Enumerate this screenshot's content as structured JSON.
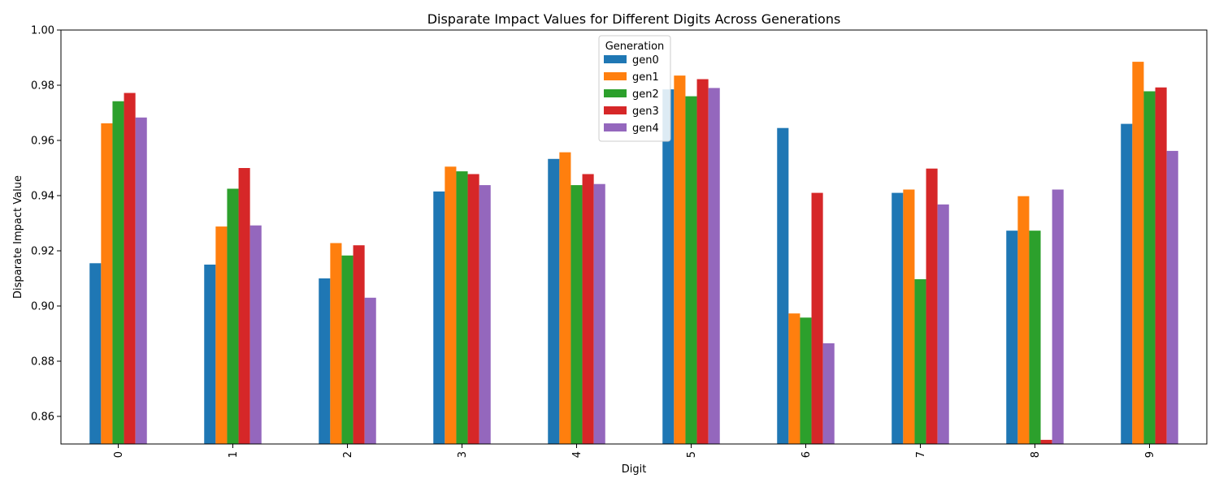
{
  "chart_data": {
    "type": "bar",
    "title": "Disparate Impact Values for Different Digits Across Generations",
    "xlabel": "Digit",
    "ylabel": "Disparate Impact Value",
    "ylim": [
      0.85,
      1.0
    ],
    "yticks": [
      "0.86",
      "0.88",
      "0.90",
      "0.92",
      "0.94",
      "0.96",
      "0.98",
      "1.00"
    ],
    "categories": [
      "0",
      "1",
      "2",
      "3",
      "4",
      "5",
      "6",
      "7",
      "8",
      "9"
    ],
    "legend": {
      "title": "Generation",
      "placement": "top-center"
    },
    "grid": false,
    "series": [
      {
        "name": "gen0",
        "color": "#1f77b4",
        "values": [
          0.9155,
          0.915,
          0.91,
          0.9415,
          0.9533,
          0.9785,
          0.9645,
          0.941,
          0.9273,
          0.966
        ]
      },
      {
        "name": "gen1",
        "color": "#ff7f0e",
        "values": [
          0.9662,
          0.9288,
          0.9228,
          0.9505,
          0.9557,
          0.9835,
          0.8973,
          0.9422,
          0.9398,
          0.9885
        ]
      },
      {
        "name": "gen2",
        "color": "#2ca02c",
        "values": [
          0.9742,
          0.9425,
          0.9183,
          0.9488,
          0.9438,
          0.976,
          0.8958,
          0.9097,
          0.9273,
          0.9778
        ]
      },
      {
        "name": "gen3",
        "color": "#d62728",
        "values": [
          0.9772,
          0.95,
          0.922,
          0.9478,
          0.9478,
          0.9822,
          0.941,
          0.9498,
          0.8515,
          0.9792
        ]
      },
      {
        "name": "gen4",
        "color": "#9467bd",
        "values": [
          0.9683,
          0.9292,
          0.903,
          0.9438,
          0.9442,
          0.979,
          0.8865,
          0.9368,
          0.9422,
          0.9562
        ]
      }
    ]
  }
}
